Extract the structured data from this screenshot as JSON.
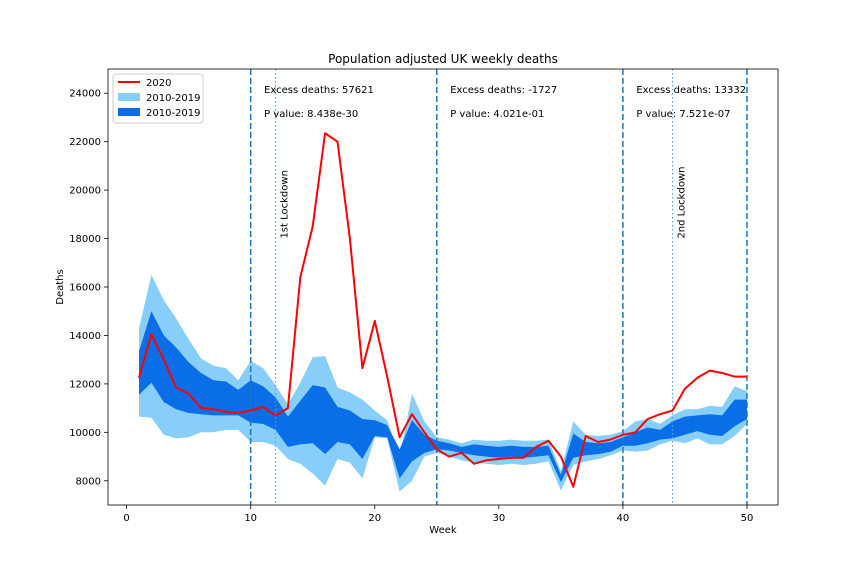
{
  "chart_data": {
    "type": "line",
    "title": "Population adjusted UK weekly deaths",
    "xlabel": "Week",
    "ylabel": "Deaths",
    "xlim": [
      -1.5,
      52.5
    ],
    "ylim": [
      7000,
      25000
    ],
    "xticks": [
      0,
      10,
      20,
      30,
      40,
      50
    ],
    "yticks": [
      8000,
      10000,
      12000,
      14000,
      16000,
      18000,
      20000,
      22000,
      24000
    ],
    "grid": false,
    "legend_position": "top-left",
    "colors": {
      "line_2020": "#ff0000",
      "outer_band": "#87cefa",
      "inner_band": "#0a6ee6",
      "period_line": "#1f77b4",
      "lockdown_line": "#5aa0d6"
    },
    "series": [
      {
        "name": "2020",
        "kind": "line",
        "x": [
          1,
          2,
          3,
          4,
          5,
          6,
          7,
          8,
          9,
          10,
          11,
          12,
          13,
          14,
          15,
          16,
          17,
          18,
          19,
          20,
          21,
          22,
          23,
          24,
          25,
          26,
          27,
          28,
          29,
          30,
          31,
          32,
          33,
          34,
          35,
          36,
          37,
          38,
          39,
          40,
          41,
          42,
          43,
          44,
          45,
          46,
          47,
          48,
          49,
          50
        ],
        "values": [
          12250,
          14050,
          13000,
          11850,
          11600,
          11000,
          10950,
          10850,
          10800,
          10900,
          11050,
          10700,
          11000,
          16400,
          18500,
          22350,
          22000,
          18000,
          12650,
          14600,
          12300,
          9800,
          10750,
          10000,
          9300,
          9000,
          9150,
          8700,
          8850,
          8900,
          8950,
          8950,
          9400,
          9650,
          9000,
          7750,
          9850,
          9600,
          9700,
          9900,
          10000,
          10550,
          10750,
          10900,
          11800,
          12250,
          12550,
          12450,
          12300,
          12300
        ]
      },
      {
        "name": "2010-2019",
        "kind": "band-outer",
        "x": [
          1,
          2,
          3,
          4,
          5,
          6,
          7,
          8,
          9,
          10,
          11,
          12,
          13,
          14,
          15,
          16,
          17,
          18,
          19,
          20,
          21,
          22,
          23,
          24,
          25,
          26,
          27,
          28,
          29,
          30,
          31,
          32,
          33,
          34,
          35,
          36,
          37,
          38,
          39,
          40,
          41,
          42,
          43,
          44,
          45,
          46,
          47,
          48,
          49,
          50
        ],
        "lower": [
          10650,
          10600,
          9900,
          9750,
          9800,
          10000,
          10000,
          10100,
          10100,
          9600,
          9600,
          9450,
          8900,
          8700,
          8300,
          7800,
          8900,
          8750,
          8100,
          9800,
          9750,
          7550,
          8000,
          9000,
          9150,
          9000,
          8850,
          8750,
          8700,
          8650,
          8700,
          8650,
          8700,
          8800,
          7600,
          8650,
          8800,
          8900,
          9050,
          9250,
          9200,
          9250,
          9500,
          9650,
          9550,
          9750,
          9500,
          9500,
          9850,
          10350
        ],
        "upper": [
          14300,
          16500,
          15450,
          14700,
          13850,
          13050,
          12750,
          12650,
          12150,
          12950,
          12650,
          11950,
          11150,
          12050,
          13100,
          13150,
          11850,
          11650,
          11350,
          10900,
          10500,
          8950,
          11600,
          10450,
          9800,
          9700,
          9550,
          9700,
          9650,
          9650,
          9700,
          9650,
          9650,
          9700,
          8400,
          10450,
          9900,
          9850,
          9900,
          10050,
          10450,
          10550,
          10350,
          10700,
          10950,
          10950,
          11100,
          11050,
          11900,
          11700
        ]
      },
      {
        "name": "2010-2019",
        "kind": "band-inner",
        "x": [
          1,
          2,
          3,
          4,
          5,
          6,
          7,
          8,
          9,
          10,
          11,
          12,
          13,
          14,
          15,
          16,
          17,
          18,
          19,
          20,
          21,
          22,
          23,
          24,
          25,
          26,
          27,
          28,
          29,
          30,
          31,
          32,
          33,
          34,
          35,
          36,
          37,
          38,
          39,
          40,
          41,
          42,
          43,
          44,
          45,
          46,
          47,
          48,
          49,
          50
        ],
        "lower": [
          11550,
          12050,
          11250,
          10950,
          10800,
          10750,
          10700,
          10700,
          10700,
          10400,
          10350,
          10100,
          9400,
          9500,
          9550,
          9100,
          9600,
          9500,
          8900,
          9850,
          9800,
          8100,
          8800,
          9150,
          9300,
          9250,
          9150,
          9050,
          9000,
          8950,
          9000,
          8950,
          9000,
          9050,
          7950,
          8950,
          9050,
          9100,
          9200,
          9450,
          9450,
          9550,
          9700,
          9750,
          9900,
          10050,
          9900,
          9850,
          10250,
          10550
        ],
        "upper": [
          13350,
          15000,
          14000,
          13500,
          12900,
          12450,
          12150,
          12100,
          11750,
          12150,
          11900,
          11450,
          10650,
          11300,
          11950,
          11850,
          11050,
          10900,
          10550,
          10500,
          10300,
          9300,
          10500,
          9900,
          9650,
          9550,
          9400,
          9500,
          9450,
          9400,
          9450,
          9400,
          9400,
          9450,
          8250,
          9950,
          9600,
          9550,
          9600,
          9800,
          10000,
          10200,
          10100,
          10450,
          10650,
          10700,
          10750,
          10700,
          11350,
          11350
        ]
      }
    ],
    "vlines": [
      {
        "x": 10,
        "style": "dashed",
        "label": ""
      },
      {
        "x": 25,
        "style": "dashed",
        "label": ""
      },
      {
        "x": 40,
        "style": "dashed",
        "label": ""
      },
      {
        "x": 50,
        "style": "dashed",
        "label": ""
      },
      {
        "x": 12,
        "style": "dotted",
        "label": "1st Lockdown"
      },
      {
        "x": 44,
        "style": "dotted",
        "label": "2nd Lockdown"
      }
    ],
    "annotations": [
      {
        "excess": "Excess deaths: 57621",
        "pvalue": "P value: 8.438e-30",
        "x": 11
      },
      {
        "excess": "Excess deaths: -1727",
        "pvalue": "P value: 4.021e-01",
        "x": 26
      },
      {
        "excess": "Excess deaths: 13332",
        "pvalue": "P value: 7.521e-07",
        "x": 41
      }
    ]
  }
}
